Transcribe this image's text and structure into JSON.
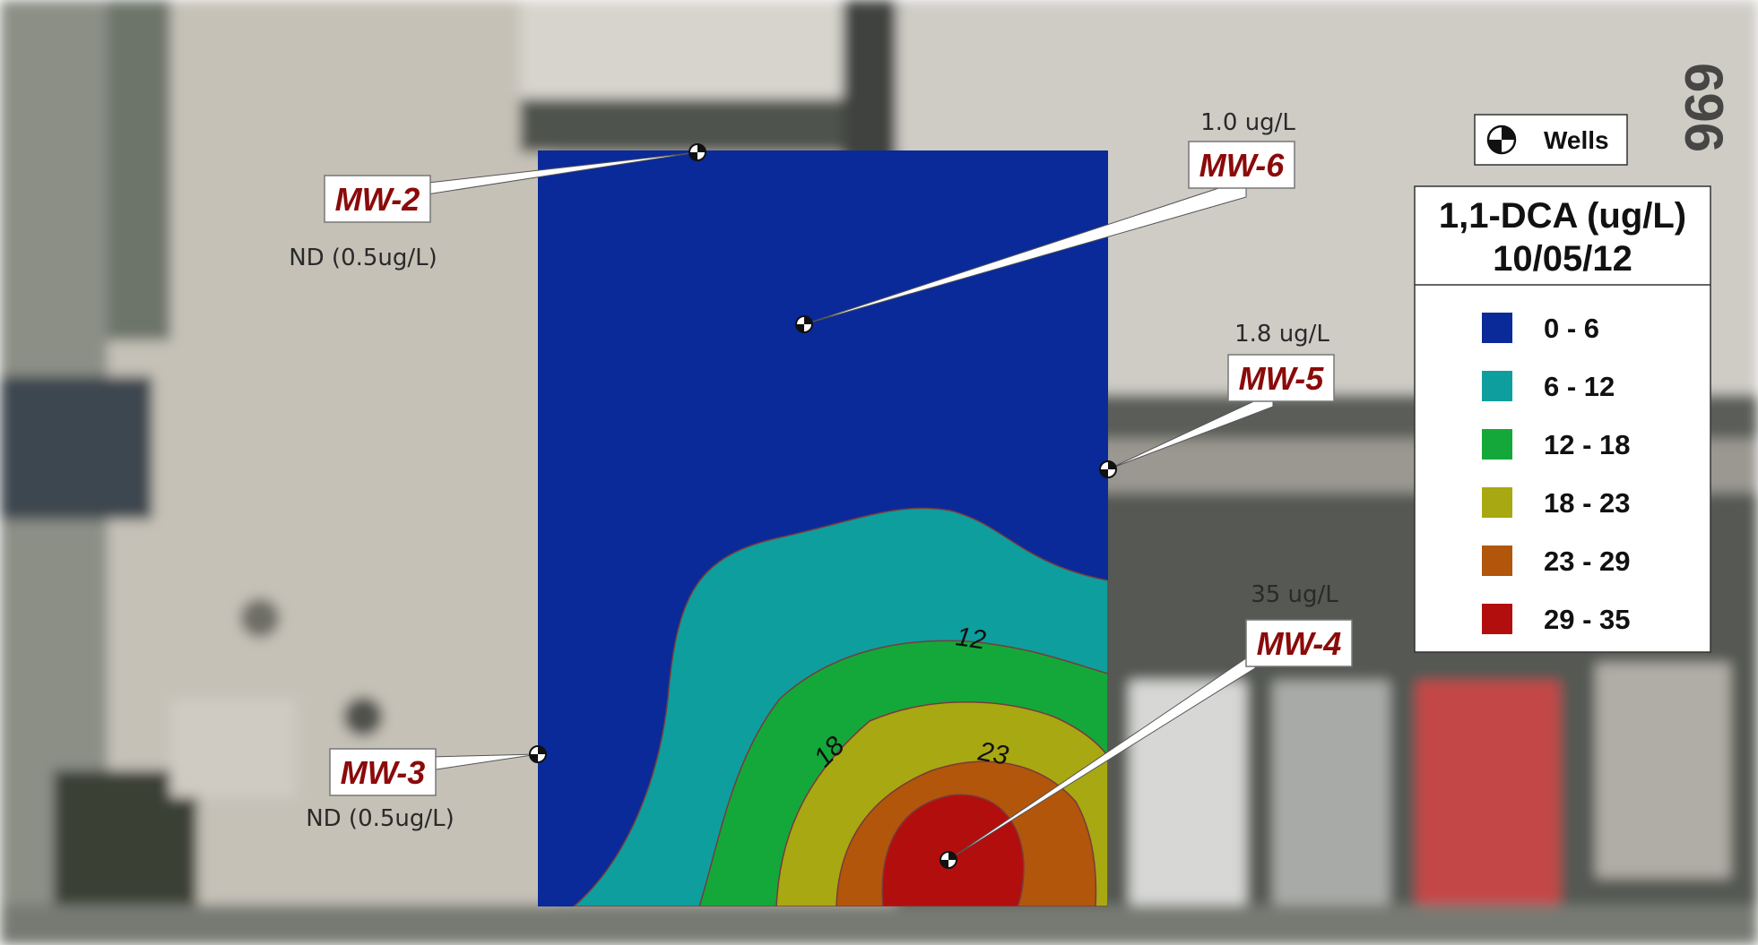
{
  "legend": {
    "wells_label": "Wells",
    "title_line1": "1,1-DCA (ug/L)",
    "title_line2": "10/05/12",
    "classes": [
      {
        "label": "0 - 6",
        "color": "#0a2a99"
      },
      {
        "label": "6 - 12",
        "color": "#0e9e9e"
      },
      {
        "label": "12 - 18",
        "color": "#14a83a"
      },
      {
        "label": "18 - 23",
        "color": "#a8a812"
      },
      {
        "label": "23 - 29",
        "color": "#b2560c"
      },
      {
        "label": "29 - 35",
        "color": "#b30e0e"
      }
    ]
  },
  "wells": [
    {
      "id": "MW-2",
      "concentration": "ND (0.5ug/L)"
    },
    {
      "id": "MW-6",
      "concentration": "1.0 ug/L"
    },
    {
      "id": "MW-5",
      "concentration": "1.8 ug/L"
    },
    {
      "id": "MW-4",
      "concentration": "35 ug/L"
    },
    {
      "id": "MW-3",
      "concentration": "ND (0.5ug/L)"
    }
  ],
  "contour_labels": [
    "12",
    "18",
    "23"
  ],
  "overlay_text": "696"
}
